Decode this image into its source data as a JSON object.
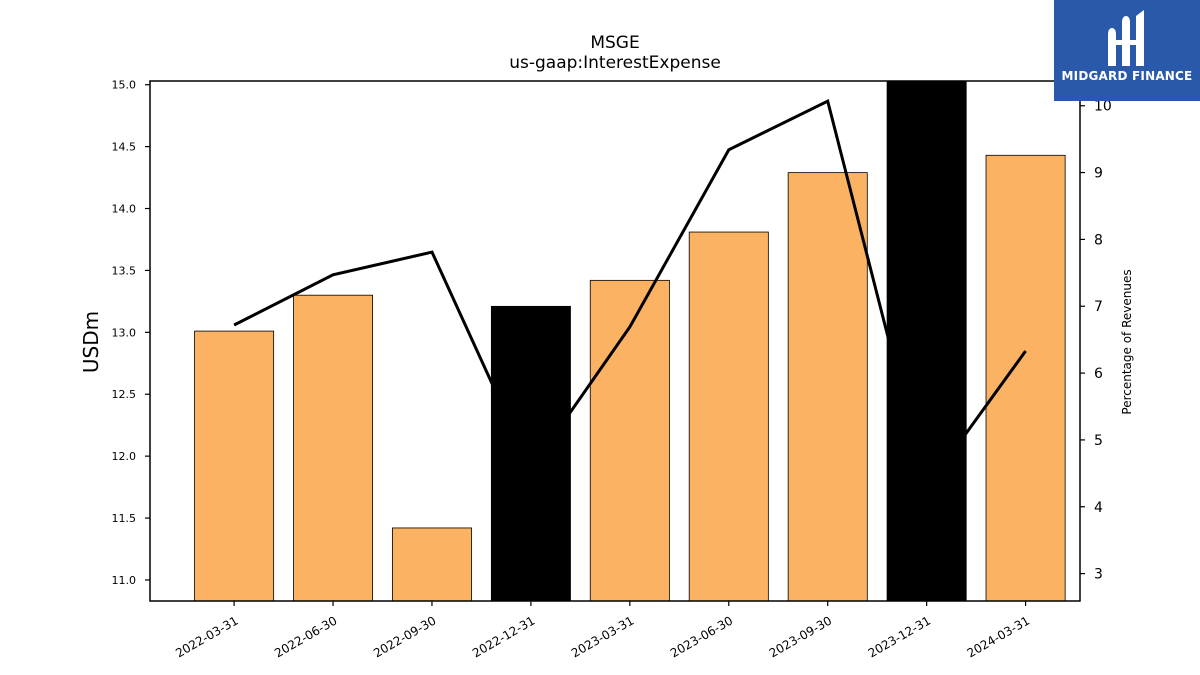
{
  "chart_data": {
    "type": "bar",
    "title": "MSGE",
    "subtitle": "us-gaap:InterestExpense",
    "ylabel": "USDm",
    "y2label": "Percentage of Revenues",
    "categories": [
      "2022-03-31",
      "2022-06-30",
      "2022-09-30",
      "2022-12-31",
      "2023-03-31",
      "2023-06-30",
      "2023-09-30",
      "2023-12-31",
      "2024-03-31"
    ],
    "series": [
      {
        "type": "bar",
        "axis": "left",
        "values": [
          13.01,
          13.3,
          11.42,
          13.21,
          13.42,
          13.81,
          14.29,
          15.1,
          14.43
        ],
        "colors": [
          "#fbb363",
          "#fbb363",
          "#fbb363",
          "#000000",
          "#fbb363",
          "#fbb363",
          "#fbb363",
          "#000000",
          "#fbb363"
        ]
      },
      {
        "type": "line",
        "axis": "right",
        "values": [
          6.72,
          7.47,
          7.81,
          4.57,
          6.69,
          9.34,
          10.07,
          4.28,
          6.33
        ],
        "color": "#000000"
      }
    ],
    "ylim": [
      10.83,
      15.03
    ],
    "yticks": [
      "11.0",
      "11.5",
      "12.0",
      "12.5",
      "13.0",
      "13.5",
      "14.0",
      "14.5",
      "15.0"
    ],
    "y2lim": [
      2.59,
      10.37
    ],
    "y2ticks": [
      "3",
      "4",
      "5",
      "6",
      "7",
      "8",
      "9",
      "10"
    ],
    "grid": false,
    "legend": "none"
  },
  "logo": {
    "text": "MIDGARD FINANCE",
    "color": "#2b59aa"
  }
}
